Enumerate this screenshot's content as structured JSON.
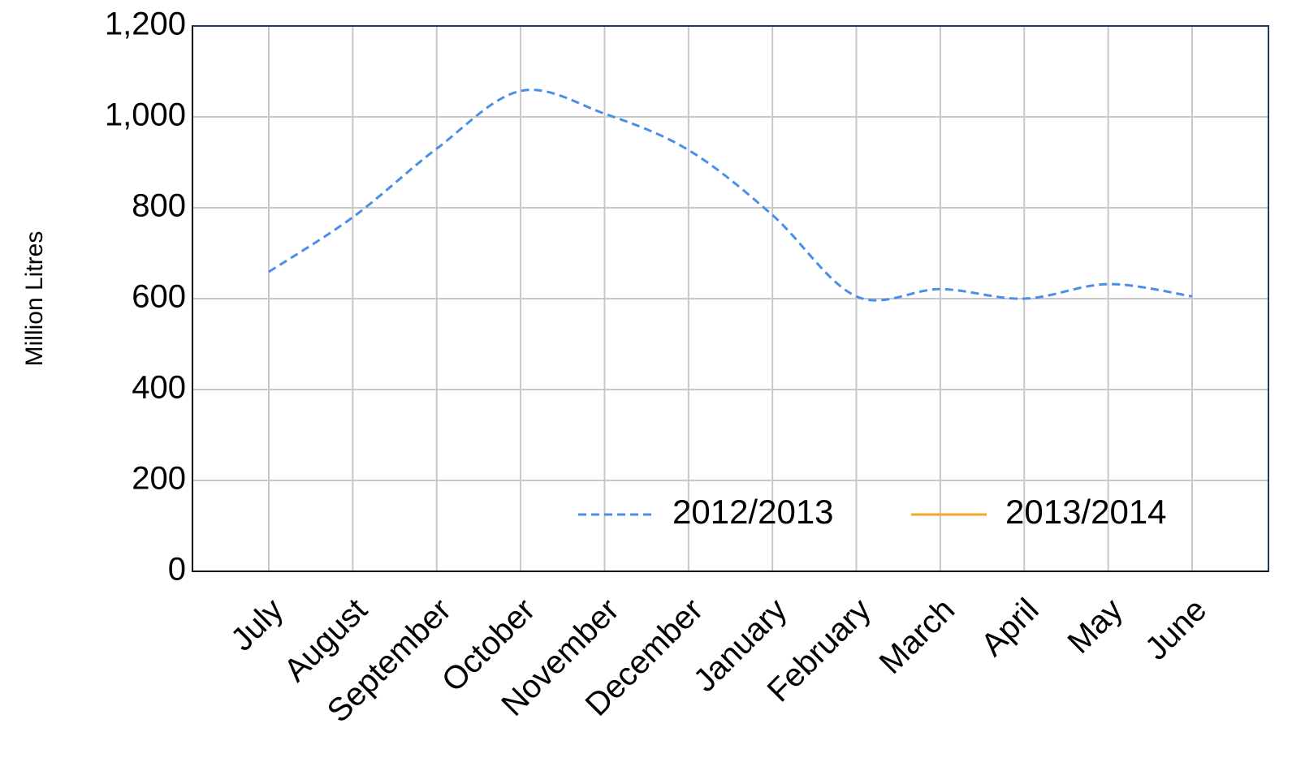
{
  "chart_data": {
    "type": "line",
    "y_label": "Million Litres",
    "categories": [
      "July",
      "August",
      "September",
      "October",
      "November",
      "December",
      "January",
      "February",
      "March",
      "April",
      "May",
      "June"
    ],
    "series": [
      {
        "name": "2012/2013",
        "color": "#4a8fe7",
        "dash": true,
        "values": [
          659,
          779,
          930,
          1057,
          1007,
          927,
          784,
          605,
          621,
          600,
          632,
          605
        ]
      },
      {
        "name": "2013/2014",
        "color": "#f5a623",
        "dash": false,
        "values": [
          null,
          null,
          null,
          null,
          null,
          null,
          null,
          null,
          null,
          null,
          null,
          null
        ]
      }
    ],
    "ylim": [
      0,
      1200
    ],
    "yticks": [
      0,
      200,
      400,
      600,
      800,
      {
        "value": 1000,
        "label": "1,000"
      },
      {
        "value": 1200,
        "label": "1,200"
      }
    ],
    "grid": true,
    "legend": "lower right"
  }
}
